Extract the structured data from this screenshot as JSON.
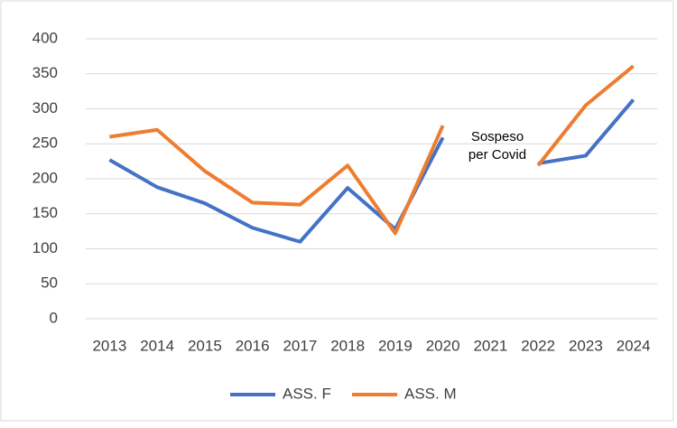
{
  "chart_data": {
    "type": "line",
    "categories": [
      "2013",
      "2014",
      "2015",
      "2016",
      "2017",
      "2018",
      "2019",
      "2020",
      "2021",
      "2022",
      "2023",
      "2024"
    ],
    "series": [
      {
        "name": "ASS. F",
        "color": "#4472c4",
        "values": [
          227,
          188,
          165,
          130,
          110,
          187,
          128,
          259,
          null,
          222,
          233,
          313
        ]
      },
      {
        "name": "ASS. M",
        "color": "#ed7d31",
        "values": [
          260,
          270,
          211,
          166,
          163,
          219,
          122,
          276,
          null,
          219,
          305,
          361
        ]
      }
    ],
    "annotation": [
      "Sospeso",
      "per Covid"
    ],
    "ylim": [
      0,
      400
    ],
    "yticks": [
      0,
      50,
      100,
      150,
      200,
      250,
      300,
      350,
      400
    ],
    "grid": true,
    "legend": "bottom"
  }
}
